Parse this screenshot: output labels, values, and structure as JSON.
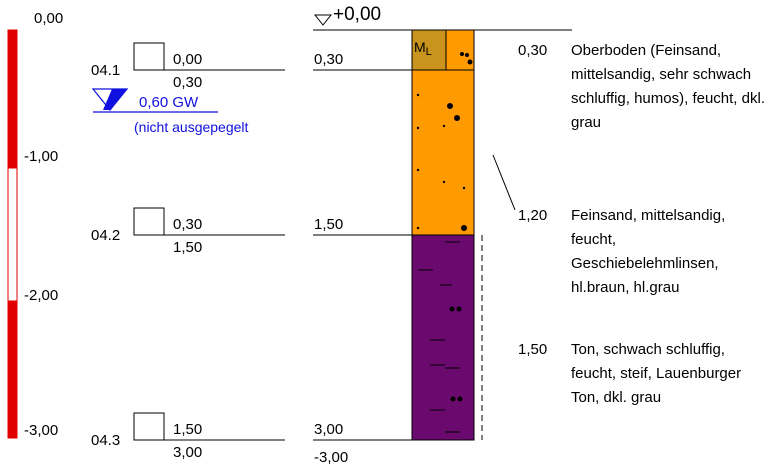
{
  "colors": {
    "scale_red": "#e00000",
    "layer_ml": "#c8941e",
    "layer_feinsand": "#ff9a00",
    "layer_ton": "#6b0a6e",
    "groundwater": "#1010e0"
  },
  "scale": {
    "ticks": [
      "0,00",
      "-1,00",
      "-2,00",
      "-3,00"
    ],
    "segments_white": [
      false,
      true,
      false
    ]
  },
  "samples": [
    {
      "id": "04.1",
      "top": "0,00",
      "bottom": "0,30"
    },
    {
      "id": "04.2",
      "top": "0,30",
      "bottom": "1,50"
    },
    {
      "id": "04.3",
      "top": "1,50",
      "bottom": "3,00"
    }
  ],
  "groundwater": {
    "depth_label": "0,60 GW",
    "note": "(nicht ausgepegelt"
  },
  "column": {
    "top_label": "+0,00",
    "layer_tops": [
      "0,30",
      "1,50",
      "3,00"
    ],
    "bottom_label": "-3,00",
    "soil_symbol": "ML",
    "layers": [
      {
        "from": 0.0,
        "to": 0.3,
        "color": "layer_ml"
      },
      {
        "from": 0.3,
        "to": 1.5,
        "color": "layer_feinsand"
      },
      {
        "from": 1.5,
        "to": 3.0,
        "color": "layer_ton"
      }
    ]
  },
  "descriptions": [
    {
      "thickness": "0,30",
      "text": "Oberboden (Feinsand, mittelsandig, sehr schwach schluffig, humos), feucht, dkl. grau"
    },
    {
      "thickness": "1,20",
      "text": "Feinsand, mittelsandig, feucht, Geschiebelehmlinsen, hl.braun, hl.grau"
    },
    {
      "thickness": "1,50",
      "text": "Ton, schwach schluffig, feucht, steif, Lauenburger Ton, dkl. grau"
    }
  ]
}
